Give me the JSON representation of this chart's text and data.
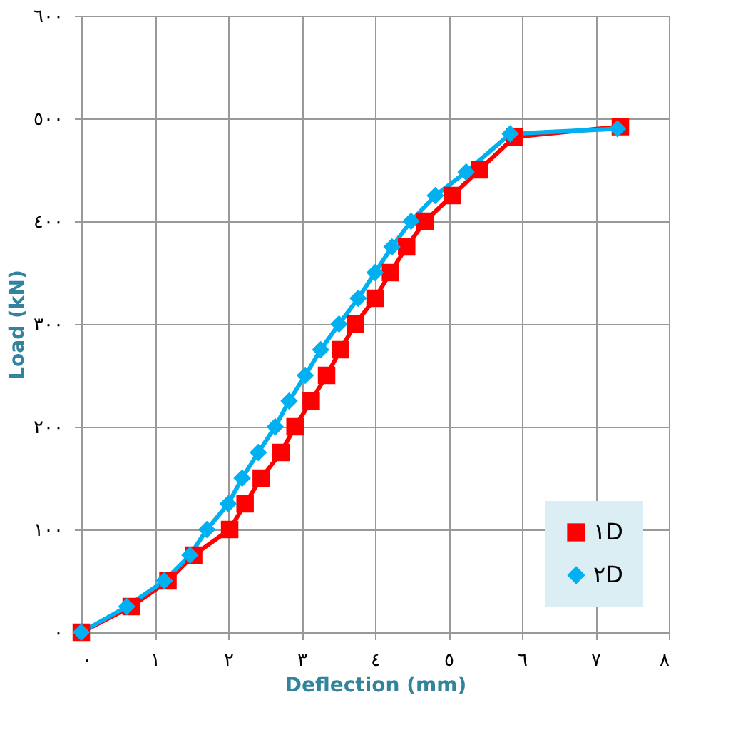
{
  "chart_data": {
    "type": "line",
    "xlabel": "Deflection (mm)",
    "ylabel": "Load (kN)",
    "xlim": [
      0,
      8
    ],
    "ylim": [
      0,
      600
    ],
    "xticks": [
      {
        "value": 0,
        "label": "٠"
      },
      {
        "value": 1,
        "label": "١"
      },
      {
        "value": 2,
        "label": "٢"
      },
      {
        "value": 3,
        "label": "٣"
      },
      {
        "value": 4,
        "label": "٤"
      },
      {
        "value": 5,
        "label": "٥"
      },
      {
        "value": 6,
        "label": "٦"
      },
      {
        "value": 7,
        "label": "٧"
      },
      {
        "value": 8,
        "label": "٨"
      }
    ],
    "yticks": [
      {
        "value": 0,
        "label": "٠"
      },
      {
        "value": 100,
        "label": "١٠٠"
      },
      {
        "value": 200,
        "label": "٢٠٠"
      },
      {
        "value": 300,
        "label": "٣٠٠"
      },
      {
        "value": 400,
        "label": "٤٠٠"
      },
      {
        "value": 500,
        "label": "٥٠٠"
      },
      {
        "value": 600,
        "label": "٦٠٠"
      }
    ],
    "grid": true,
    "legend": "bottom right",
    "line_style": "solid",
    "series": [
      {
        "name": "١D",
        "color": "#ff0000",
        "marker": "square",
        "x": [
          0,
          0.68,
          1.18,
          1.53,
          2.02,
          2.23,
          2.45,
          2.72,
          2.91,
          3.13,
          3.34,
          3.53,
          3.73,
          4.0,
          4.21,
          4.43,
          4.68,
          5.05,
          5.42,
          5.9,
          7.34
        ],
        "values": [
          0,
          25,
          50,
          75,
          100,
          125,
          150,
          175,
          200,
          225,
          250,
          275,
          300,
          325,
          350,
          375,
          400,
          425,
          450,
          482,
          492
        ]
      },
      {
        "name": "٢D",
        "color": "#00b0f0",
        "marker": "diamond",
        "x": [
          0,
          0.62,
          1.13,
          1.48,
          1.71,
          2.0,
          2.19,
          2.41,
          2.64,
          2.83,
          3.05,
          3.26,
          3.51,
          3.77,
          4.0,
          4.23,
          4.49,
          4.82,
          5.24,
          5.84,
          7.3
        ],
        "values": [
          0,
          25,
          50,
          75,
          100,
          125,
          150,
          175,
          200,
          225,
          250,
          275,
          300,
          325,
          350,
          375,
          400,
          425,
          448,
          485,
          490
        ]
      }
    ]
  }
}
